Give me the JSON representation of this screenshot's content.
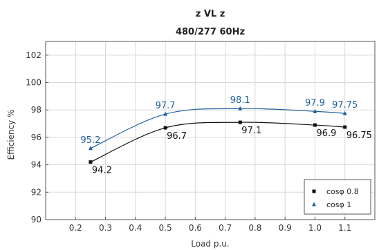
{
  "chart_data": {
    "type": "line",
    "title": "z VL z",
    "subtitle": "480/277 60Hz",
    "xlabel": "Load p.u.",
    "ylabel": "Efficiency %",
    "xlim": [
      0.1,
      1.2
    ],
    "ylim": [
      90,
      103
    ],
    "xticks": [
      "0.2",
      "0.3",
      "0.4",
      "0.5",
      "0.6",
      "0.7",
      "0.8",
      "0.9",
      "1.0",
      "1.1"
    ],
    "yticks": [
      "90",
      "92",
      "94",
      "96",
      "98",
      "100",
      "102"
    ],
    "grid": true,
    "legend_position": "bottom-right",
    "series": [
      {
        "name": "cosφ 0.8",
        "marker": "square",
        "color": "#111111",
        "x": [
          0.25,
          0.5,
          0.75,
          1.0,
          1.1
        ],
        "y": [
          94.2,
          96.7,
          97.1,
          96.9,
          96.75
        ],
        "labels": [
          "94.2",
          "96.7",
          "97.1",
          "96.9",
          "96.75"
        ]
      },
      {
        "name": "cosφ 1",
        "marker": "triangle",
        "color": "#1f5f9e",
        "x": [
          0.25,
          0.5,
          0.75,
          1.0,
          1.1
        ],
        "y": [
          95.2,
          97.7,
          98.1,
          97.9,
          97.75
        ],
        "labels": [
          "95.2",
          "97.7",
          "98.1",
          "97.9",
          "97.75"
        ]
      }
    ]
  }
}
